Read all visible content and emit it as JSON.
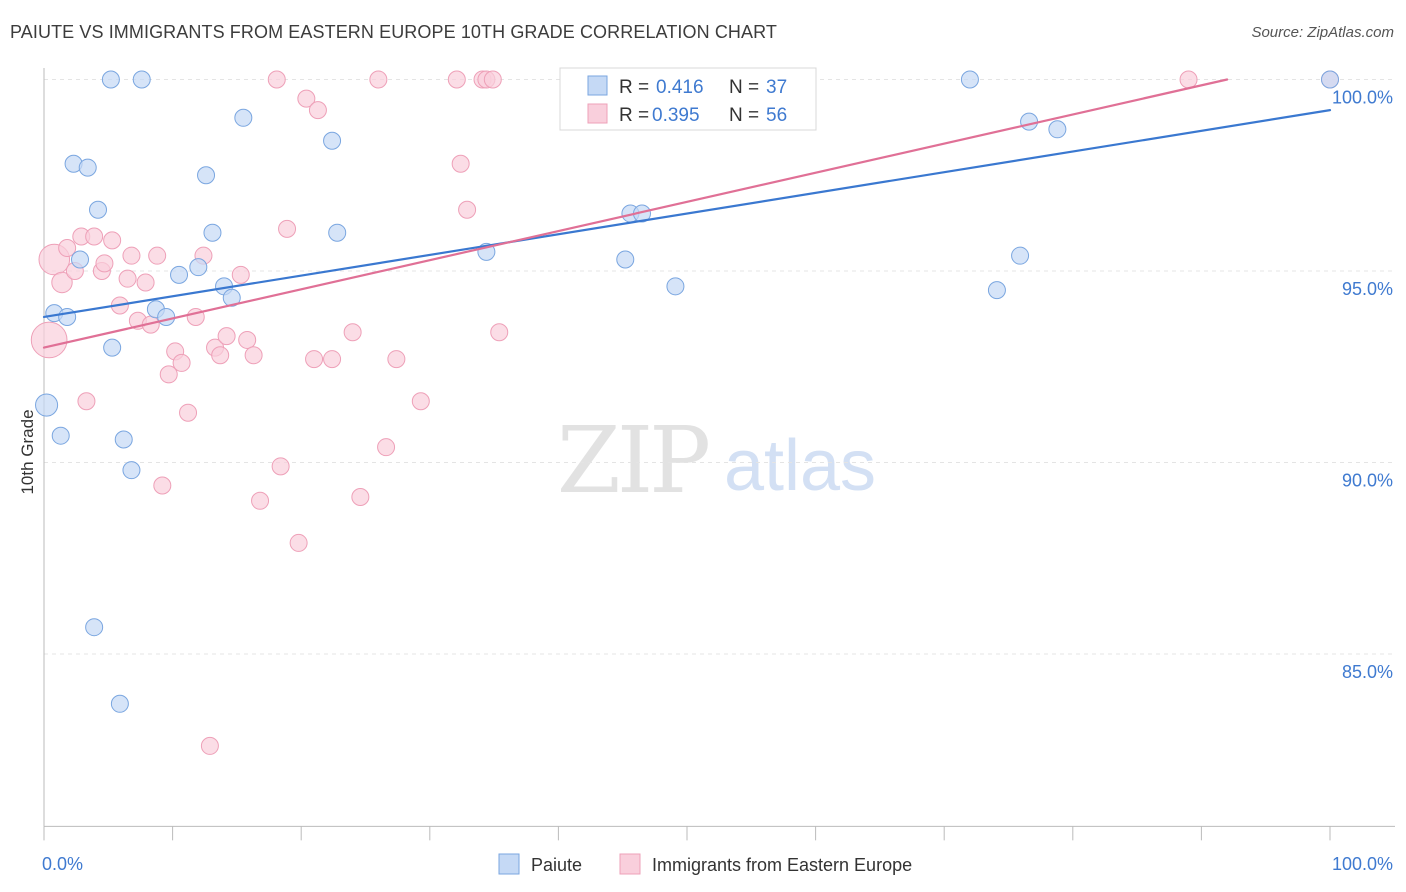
{
  "header": {
    "title": "PAIUTE VS IMMIGRANTS FROM EASTERN EUROPE 10TH GRADE CORRELATION CHART",
    "source": "Source: ZipAtlas.com"
  },
  "watermark": {
    "zip": "ZIP",
    "atlas": "atlas"
  },
  "legend_box": {
    "rows": [
      {
        "r_label": "R =",
        "r_value": "0.416",
        "n_label": "N =",
        "n_value": "37"
      },
      {
        "r_label": "R =",
        "r_value": "0.395",
        "n_label": "N =",
        "n_value": "56"
      }
    ]
  },
  "colors": {
    "paiute_fill": "#c5d9f5",
    "paiute_stroke": "#7aa6e0",
    "paiute_line": "#3a78d0",
    "eeu_fill": "#f9cfdc",
    "eeu_stroke": "#eea0b8",
    "eeu_line": "#e07096",
    "tick_text": "#3f7ad0",
    "grid": "#e4e4e4",
    "axis": "#bbbbbb"
  },
  "chart_data": {
    "type": "scatter",
    "xlabel": "",
    "ylabel": "10th Grade",
    "xlim": [
      0,
      100
    ],
    "ylim": [
      80.5,
      100.8
    ],
    "x_tick_labels": [
      "0.0%",
      "100.0%"
    ],
    "y_ticks": [
      85,
      90,
      95,
      100
    ],
    "y_tick_labels": [
      "85.0%",
      "90.0%",
      "95.0%",
      "100.0%"
    ],
    "grid": true,
    "legend_position": "bottom-center",
    "series": [
      {
        "name": "Paiute",
        "r": 0.416,
        "n": 37,
        "trend": {
          "x": [
            0,
            100
          ],
          "y": [
            93.8,
            99.2
          ]
        },
        "points": [
          {
            "x": 0.2,
            "y": 91.5,
            "s": 1.3
          },
          {
            "x": 0.8,
            "y": 93.9,
            "s": 1
          },
          {
            "x": 1.3,
            "y": 90.7,
            "s": 1
          },
          {
            "x": 1.8,
            "y": 93.8,
            "s": 1
          },
          {
            "x": 2.3,
            "y": 97.8,
            "s": 1
          },
          {
            "x": 2.8,
            "y": 95.3,
            "s": 1
          },
          {
            "x": 3.4,
            "y": 97.7,
            "s": 1
          },
          {
            "x": 3.9,
            "y": 85.7,
            "s": 1
          },
          {
            "x": 4.2,
            "y": 96.6,
            "s": 1
          },
          {
            "x": 5.2,
            "y": 100.0,
            "s": 1
          },
          {
            "x": 5.3,
            "y": 93.0,
            "s": 1
          },
          {
            "x": 5.9,
            "y": 83.7,
            "s": 1
          },
          {
            "x": 6.2,
            "y": 90.6,
            "s": 1
          },
          {
            "x": 6.8,
            "y": 89.8,
            "s": 1
          },
          {
            "x": 7.6,
            "y": 100.0,
            "s": 1
          },
          {
            "x": 8.7,
            "y": 94.0,
            "s": 1
          },
          {
            "x": 9.5,
            "y": 93.8,
            "s": 1
          },
          {
            "x": 10.5,
            "y": 94.9,
            "s": 1
          },
          {
            "x": 12.0,
            "y": 95.1,
            "s": 1
          },
          {
            "x": 12.6,
            "y": 97.5,
            "s": 1
          },
          {
            "x": 13.1,
            "y": 96.0,
            "s": 1
          },
          {
            "x": 14.0,
            "y": 94.6,
            "s": 1
          },
          {
            "x": 14.6,
            "y": 94.3,
            "s": 1
          },
          {
            "x": 15.5,
            "y": 99.0,
            "s": 1
          },
          {
            "x": 22.4,
            "y": 98.4,
            "s": 1
          },
          {
            "x": 22.8,
            "y": 96.0,
            "s": 1
          },
          {
            "x": 34.4,
            "y": 95.5,
            "s": 1
          },
          {
            "x": 45.2,
            "y": 95.3,
            "s": 1
          },
          {
            "x": 45.6,
            "y": 96.5,
            "s": 1
          },
          {
            "x": 46.5,
            "y": 96.5,
            "s": 1
          },
          {
            "x": 49.1,
            "y": 94.6,
            "s": 1
          },
          {
            "x": 72.0,
            "y": 100.0,
            "s": 1
          },
          {
            "x": 74.1,
            "y": 94.5,
            "s": 1
          },
          {
            "x": 75.9,
            "y": 95.4,
            "s": 1
          },
          {
            "x": 76.6,
            "y": 98.9,
            "s": 1
          },
          {
            "x": 78.8,
            "y": 98.7,
            "s": 1
          },
          {
            "x": 100.0,
            "y": 100.0,
            "s": 1
          }
        ]
      },
      {
        "name": "Immigrants from Eastern Europe",
        "r": 0.395,
        "n": 56,
        "trend": {
          "x": [
            0,
            92
          ],
          "y": [
            93.0,
            100.0
          ]
        },
        "points": [
          {
            "x": 0.4,
            "y": 93.2,
            "s": 2.1
          },
          {
            "x": 0.8,
            "y": 95.3,
            "s": 1.8
          },
          {
            "x": 1.4,
            "y": 94.7,
            "s": 1.2
          },
          {
            "x": 1.8,
            "y": 95.6,
            "s": 1
          },
          {
            "x": 2.4,
            "y": 95.0,
            "s": 1
          },
          {
            "x": 2.9,
            "y": 95.9,
            "s": 1
          },
          {
            "x": 3.3,
            "y": 91.6,
            "s": 1
          },
          {
            "x": 3.9,
            "y": 95.9,
            "s": 1
          },
          {
            "x": 4.5,
            "y": 95.0,
            "s": 1
          },
          {
            "x": 4.7,
            "y": 95.2,
            "s": 1
          },
          {
            "x": 5.3,
            "y": 95.8,
            "s": 1
          },
          {
            "x": 5.9,
            "y": 94.1,
            "s": 1
          },
          {
            "x": 6.5,
            "y": 94.8,
            "s": 1
          },
          {
            "x": 6.8,
            "y": 95.4,
            "s": 1
          },
          {
            "x": 7.3,
            "y": 93.7,
            "s": 1
          },
          {
            "x": 7.9,
            "y": 94.7,
            "s": 1
          },
          {
            "x": 8.3,
            "y": 93.6,
            "s": 1
          },
          {
            "x": 8.8,
            "y": 95.4,
            "s": 1
          },
          {
            "x": 9.2,
            "y": 89.4,
            "s": 1
          },
          {
            "x": 9.7,
            "y": 92.3,
            "s": 1
          },
          {
            "x": 10.2,
            "y": 92.9,
            "s": 1
          },
          {
            "x": 10.7,
            "y": 92.6,
            "s": 1
          },
          {
            "x": 11.2,
            "y": 91.3,
            "s": 1
          },
          {
            "x": 11.8,
            "y": 93.8,
            "s": 1
          },
          {
            "x": 12.4,
            "y": 95.4,
            "s": 1
          },
          {
            "x": 12.9,
            "y": 82.6,
            "s": 1
          },
          {
            "x": 13.3,
            "y": 93.0,
            "s": 1
          },
          {
            "x": 13.7,
            "y": 92.8,
            "s": 1
          },
          {
            "x": 14.2,
            "y": 93.3,
            "s": 1
          },
          {
            "x": 15.3,
            "y": 94.9,
            "s": 1
          },
          {
            "x": 15.8,
            "y": 93.2,
            "s": 1
          },
          {
            "x": 16.3,
            "y": 92.8,
            "s": 1
          },
          {
            "x": 16.8,
            "y": 89.0,
            "s": 1
          },
          {
            "x": 18.1,
            "y": 100.0,
            "s": 1
          },
          {
            "x": 18.4,
            "y": 89.9,
            "s": 1
          },
          {
            "x": 18.9,
            "y": 96.1,
            "s": 1
          },
          {
            "x": 19.8,
            "y": 87.9,
            "s": 1
          },
          {
            "x": 20.4,
            "y": 99.5,
            "s": 1
          },
          {
            "x": 21.0,
            "y": 92.7,
            "s": 1
          },
          {
            "x": 21.3,
            "y": 99.2,
            "s": 1
          },
          {
            "x": 22.4,
            "y": 92.7,
            "s": 1
          },
          {
            "x": 24.0,
            "y": 93.4,
            "s": 1
          },
          {
            "x": 24.6,
            "y": 89.1,
            "s": 1
          },
          {
            "x": 26.0,
            "y": 100.0,
            "s": 1
          },
          {
            "x": 26.6,
            "y": 90.4,
            "s": 1
          },
          {
            "x": 27.4,
            "y": 92.7,
            "s": 1
          },
          {
            "x": 29.3,
            "y": 91.6,
            "s": 1
          },
          {
            "x": 32.1,
            "y": 100.0,
            "s": 1
          },
          {
            "x": 32.4,
            "y": 97.8,
            "s": 1
          },
          {
            "x": 32.9,
            "y": 96.6,
            "s": 1
          },
          {
            "x": 34.1,
            "y": 100.0,
            "s": 1
          },
          {
            "x": 34.4,
            "y": 100.0,
            "s": 1
          },
          {
            "x": 34.9,
            "y": 100.0,
            "s": 1
          },
          {
            "x": 35.4,
            "y": 93.4,
            "s": 1
          },
          {
            "x": 89.0,
            "y": 100.0,
            "s": 1
          },
          {
            "x": 100.0,
            "y": 100.0,
            "s": 1
          }
        ]
      }
    ]
  }
}
